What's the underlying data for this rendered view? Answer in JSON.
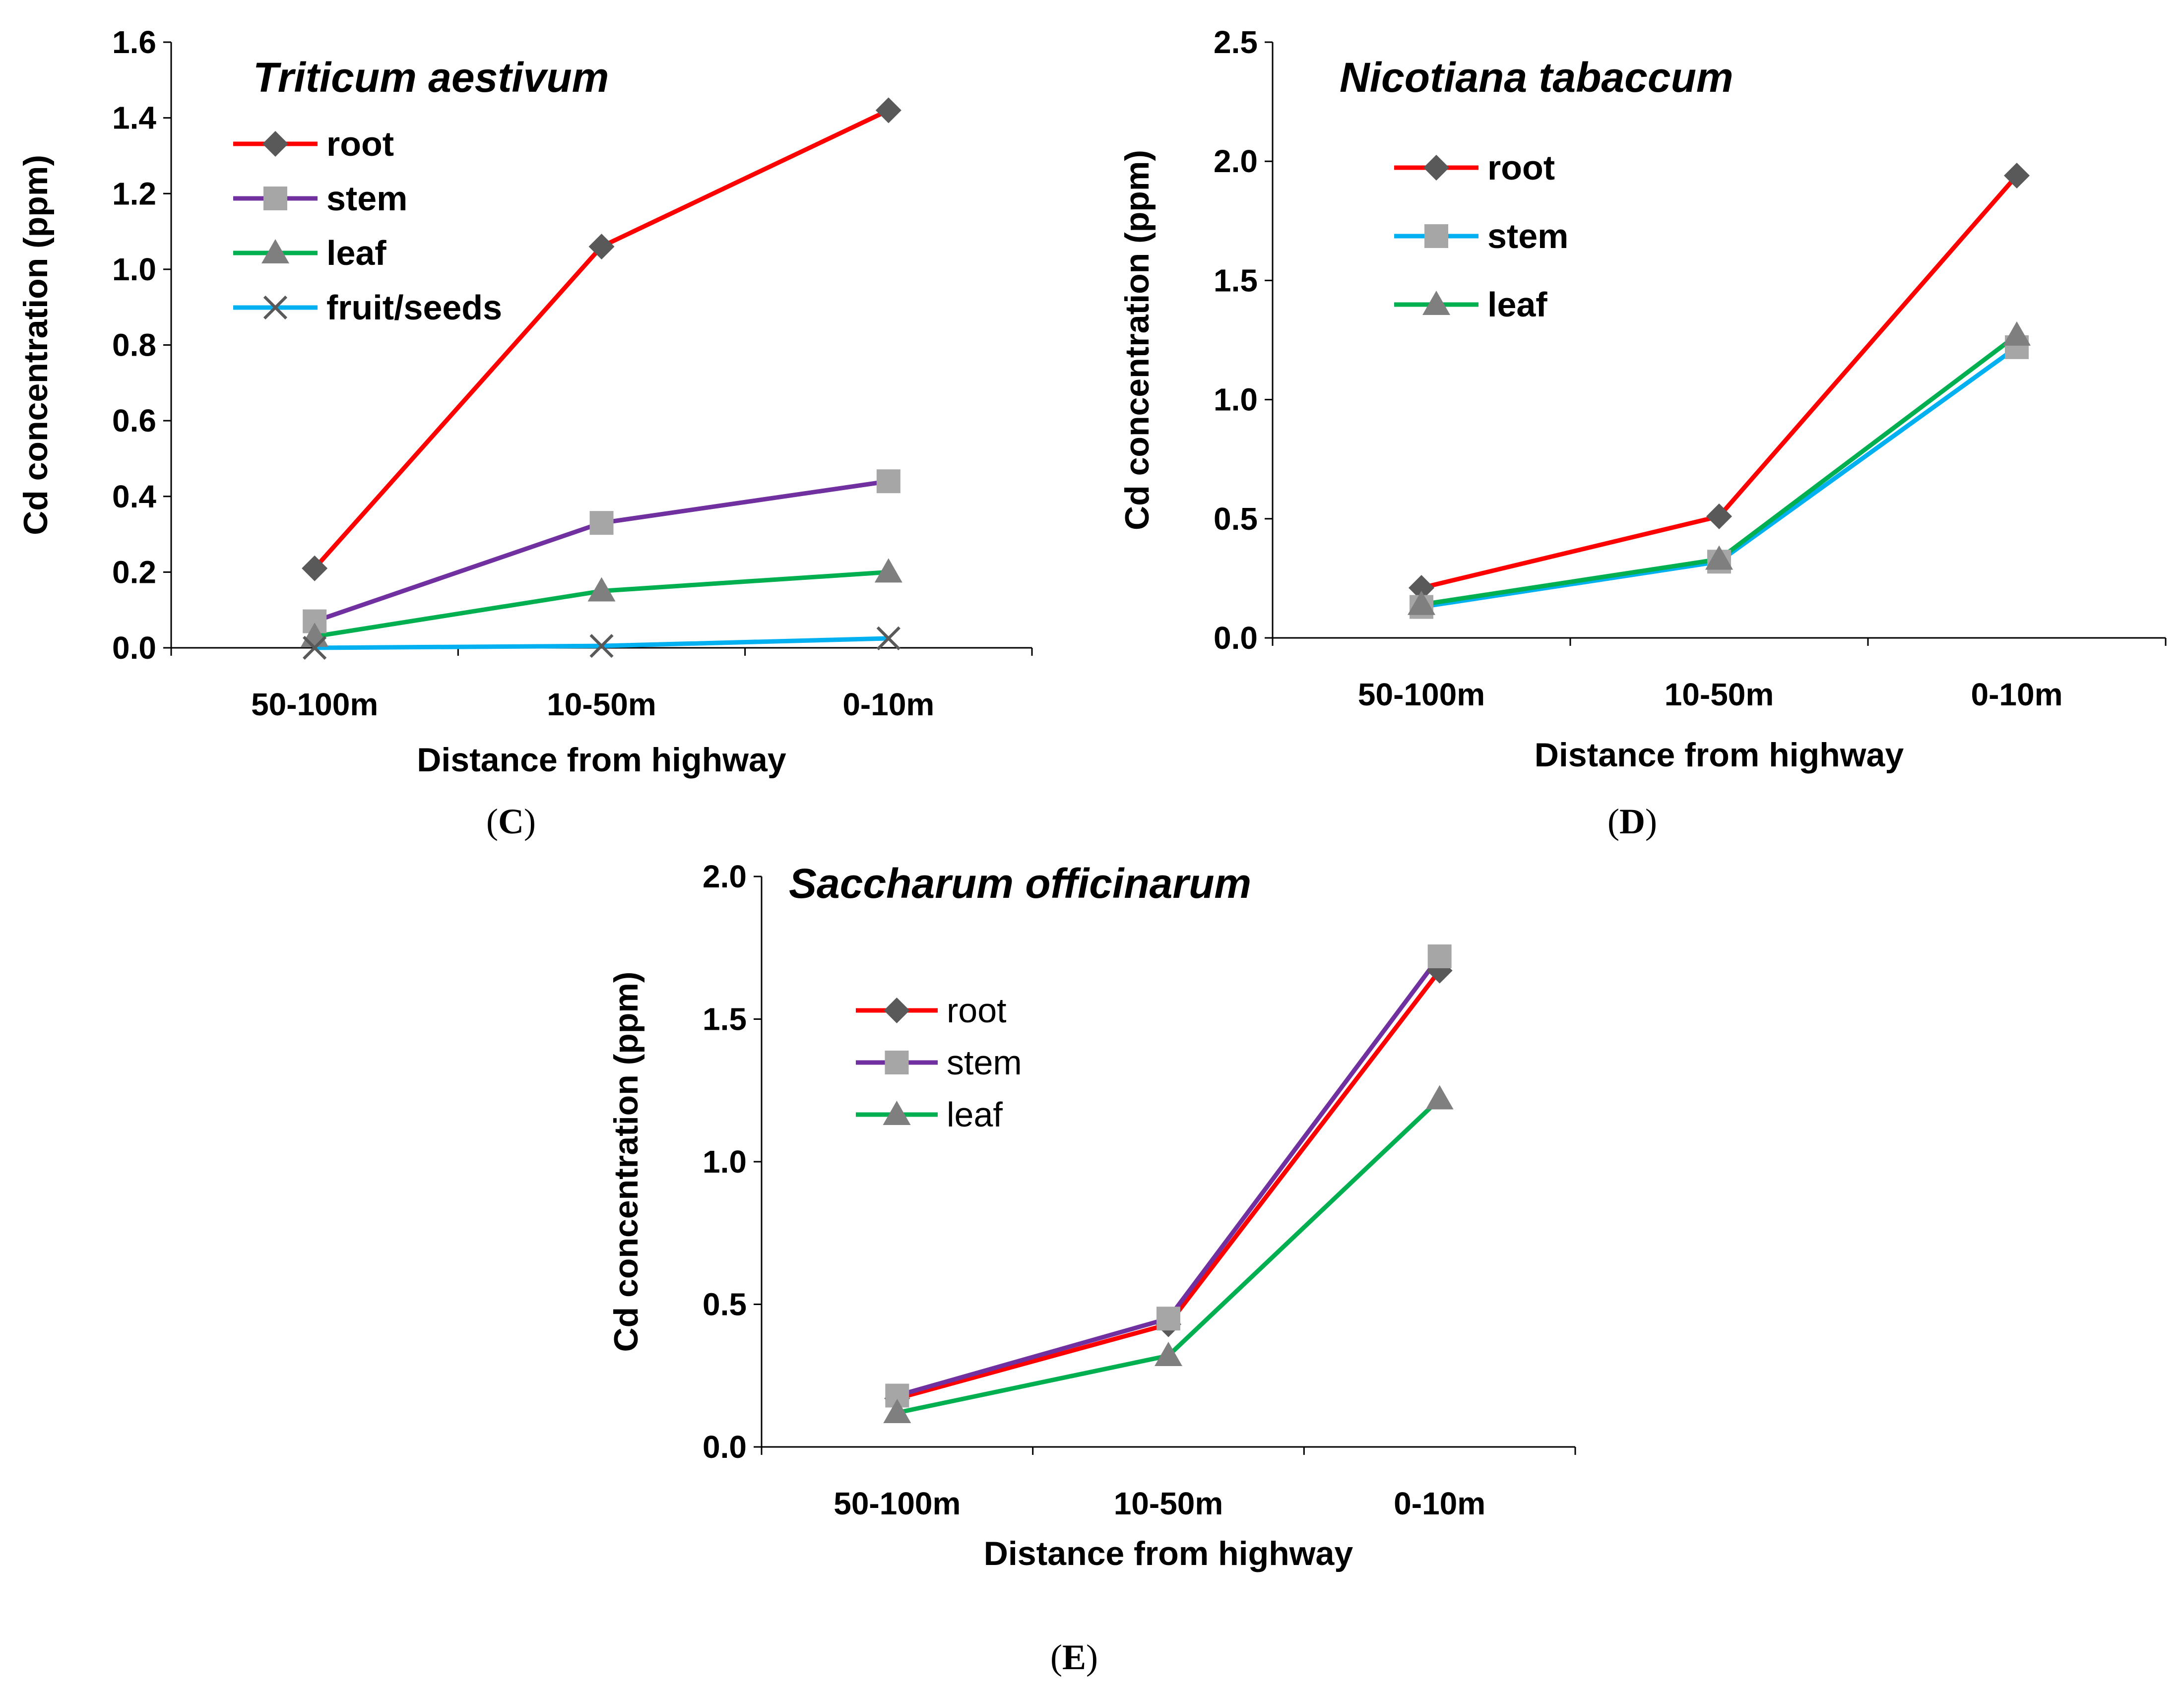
{
  "chart_data": [
    {
      "type": "line",
      "panel_label": "C",
      "title": "Triticum aestivum",
      "xlabel": "Distance from highway",
      "ylabel": "Cd concentration (ppm)",
      "categories": [
        "50-100m",
        "10-50m",
        "0-10m"
      ],
      "ylim": [
        0,
        1.6
      ],
      "yticks": [
        "0.0",
        "0.2",
        "0.4",
        "0.6",
        "0.8",
        "1.0",
        "1.2",
        "1.4",
        "1.6"
      ],
      "legend_bold": true,
      "series": [
        {
          "name": "root",
          "values": [
            0.21,
            1.06,
            1.42
          ],
          "color": "#ff0000",
          "marker": "diamond"
        },
        {
          "name": "stem",
          "values": [
            0.07,
            0.33,
            0.44
          ],
          "color": "#7030a0",
          "marker": "square"
        },
        {
          "name": "leaf",
          "values": [
            0.03,
            0.15,
            0.2
          ],
          "color": "#00b050",
          "marker": "triangle"
        },
        {
          "name": "fruit/seeds",
          "values": [
            0.0,
            0.005,
            0.025
          ],
          "color": "#00b0f0",
          "marker": "x"
        }
      ]
    },
    {
      "type": "line",
      "panel_label": "D",
      "title": "Nicotiana tabaccum",
      "xlabel": "Distance from highway",
      "ylabel": "Cd concentration (ppm)",
      "categories": [
        "50-100m",
        "10-50m",
        "0-10m"
      ],
      "ylim": [
        0,
        2.5
      ],
      "yticks": [
        "0.0",
        "0.5",
        "1.0",
        "1.5",
        "2.0",
        "2.5"
      ],
      "legend_bold": true,
      "series": [
        {
          "name": "root",
          "values": [
            0.21,
            0.51,
            1.94
          ],
          "color": "#ff0000",
          "marker": "diamond"
        },
        {
          "name": "stem",
          "values": [
            0.13,
            0.32,
            1.22
          ],
          "color": "#00b0f0",
          "marker": "square"
        },
        {
          "name": "leaf",
          "values": [
            0.14,
            0.33,
            1.27
          ],
          "color": "#00b050",
          "marker": "triangle"
        }
      ]
    },
    {
      "type": "line",
      "panel_label": "E",
      "title": "Saccharum officinarum",
      "xlabel": "Distance from highway",
      "ylabel": "Cd concentration (ppm)",
      "categories": [
        "50-100m",
        "10-50m",
        "0-10m"
      ],
      "ylim": [
        0,
        2.0
      ],
      "yticks": [
        "0.0",
        "0.5",
        "1.0",
        "1.5",
        "2.0"
      ],
      "legend_bold": false,
      "series": [
        {
          "name": "root",
          "values": [
            0.17,
            0.43,
            1.67
          ],
          "color": "#ff0000",
          "marker": "diamond"
        },
        {
          "name": "stem",
          "values": [
            0.18,
            0.45,
            1.72
          ],
          "color": "#7030a0",
          "marker": "square"
        },
        {
          "name": "leaf",
          "values": [
            0.12,
            0.32,
            1.22
          ],
          "color": "#00b050",
          "marker": "triangle"
        }
      ]
    }
  ]
}
